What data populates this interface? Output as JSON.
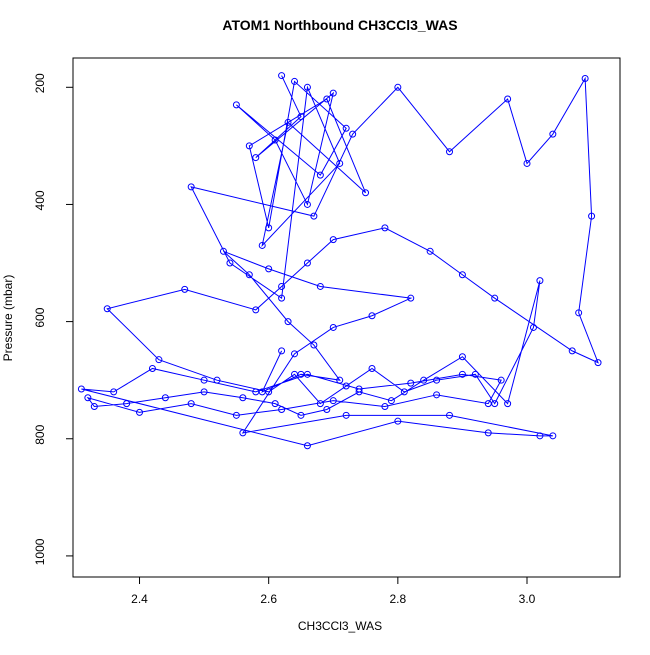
{
  "chart_data": {
    "type": "line",
    "title": "ATOM1 Northbound CH3CCl3_WAS",
    "x_label": "CH3CCl3_WAS",
    "y_label": "Pressure (mbar)",
    "color": "#0000ff",
    "marker": "circle",
    "y_reversed": true,
    "xlim": [
      2.297,
      3.144
    ],
    "ylim": [
      150,
      1036
    ],
    "xticks": [
      2.4,
      2.6,
      2.8,
      {
        "value": 3,
        "label": "3.0"
      }
    ],
    "yticks": [
      200,
      400,
      600,
      800,
      1000
    ],
    "x": [
      2.62,
      2.65,
      2.58,
      2.7,
      2.66,
      2.61,
      2.55,
      2.68,
      2.72,
      2.64,
      2.6,
      2.57,
      2.69,
      2.75,
      2.63,
      2.59,
      2.71,
      2.66,
      2.62,
      2.54,
      2.48,
      2.67,
      2.73,
      2.8,
      2.88,
      2.97,
      3.0,
      3.04,
      3.09,
      3.1,
      3.08,
      3.11,
      3.07,
      2.95,
      2.9,
      2.85,
      2.78,
      2.7,
      2.66,
      2.62,
      2.58,
      2.47,
      2.35,
      2.43,
      2.52,
      2.6,
      2.64,
      2.68,
      2.72,
      2.76,
      2.81,
      2.86,
      2.92,
      2.95,
      3.01,
      3.02,
      2.97,
      2.9,
      2.84,
      2.79,
      2.74,
      2.69,
      2.65,
      2.61,
      2.56,
      2.5,
      2.44,
      2.38,
      2.33,
      2.32,
      2.4,
      2.48,
      2.55,
      2.62,
      2.7,
      2.78,
      2.86,
      2.94,
      2.96,
      2.9,
      2.82,
      2.74,
      2.66,
      2.58,
      2.5,
      2.42,
      2.36,
      2.31,
      2.66,
      2.8,
      2.94,
      3.02,
      3.04,
      2.88,
      2.72,
      2.56,
      2.64,
      2.7,
      2.76,
      2.82,
      2.68,
      2.6,
      2.53,
      2.57,
      2.63,
      2.67,
      2.71,
      2.65,
      2.59,
      2.62
    ],
    "values": [
      180,
      250,
      320,
      210,
      400,
      290,
      230,
      350,
      270,
      190,
      440,
      300,
      220,
      380,
      260,
      470,
      330,
      200,
      560,
      500,
      370,
      420,
      280,
      200,
      310,
      220,
      330,
      280,
      185,
      420,
      585,
      670,
      650,
      560,
      520,
      480,
      440,
      460,
      500,
      540,
      580,
      545,
      578,
      665,
      700,
      720,
      690,
      740,
      710,
      680,
      720,
      700,
      690,
      740,
      610,
      530,
      740,
      660,
      700,
      735,
      720,
      750,
      760,
      740,
      730,
      720,
      730,
      740,
      745,
      730,
      755,
      740,
      760,
      750,
      735,
      745,
      725,
      740,
      700,
      690,
      705,
      715,
      690,
      720,
      700,
      680,
      720,
      715,
      812,
      770,
      790,
      795,
      795,
      760,
      760,
      790,
      655,
      610,
      590,
      560,
      540,
      510,
      480,
      520,
      600,
      640,
      700,
      690,
      720,
      650
    ]
  }
}
